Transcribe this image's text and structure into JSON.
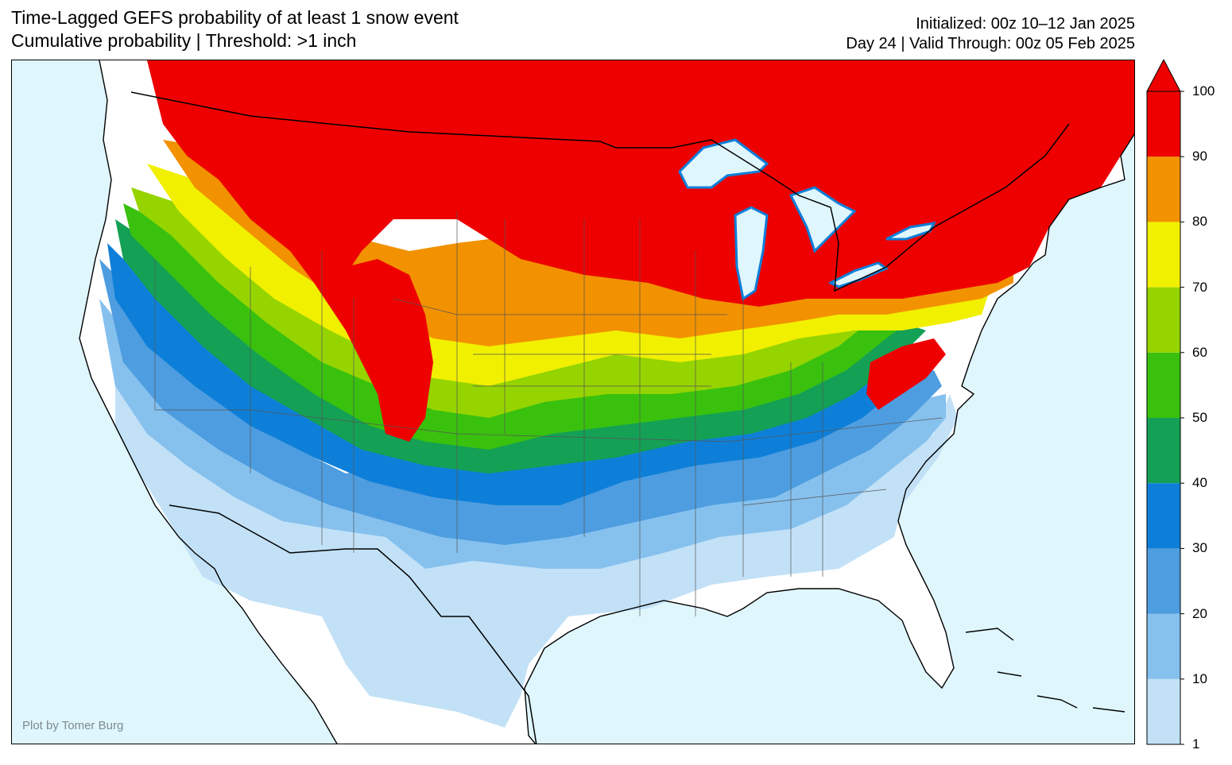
{
  "header": {
    "title": "Time-Lagged GEFS probability of at least 1 snow event",
    "subtitle": "Cumulative probability | Threshold: >1 inch",
    "initialized": "Initialized: 00z 10–12 Jan 2025",
    "valid": "Day 24 | Valid Through: 00z 05 Feb 2025"
  },
  "map": {
    "region": "Contiguous United States",
    "credit": "Plot by Tomer Burg",
    "ocean_color": "#dff6fd",
    "land_color": "#ffffff"
  },
  "colorbar": {
    "tick_labels": [
      "1",
      "10",
      "20",
      "30",
      "40",
      "50",
      "60",
      "70",
      "80",
      "90",
      "100"
    ],
    "bins": [
      {
        "range": "1-10",
        "color": "#c2e1f7"
      },
      {
        "range": "10-20",
        "color": "#86c1ee"
      },
      {
        "range": "20-30",
        "color": "#4d9de0"
      },
      {
        "range": "30-40",
        "color": "#0e7fd8"
      },
      {
        "range": "40-50",
        "color": "#14a055"
      },
      {
        "range": "50-60",
        "color": "#39c10e"
      },
      {
        "range": "60-70",
        "color": "#96d400"
      },
      {
        "range": "70-80",
        "color": "#f1f000"
      },
      {
        "range": "80-90",
        "color": "#f29200"
      },
      {
        "range": "90-100",
        "color": "#ee0000"
      }
    ],
    "extend": "max"
  }
}
